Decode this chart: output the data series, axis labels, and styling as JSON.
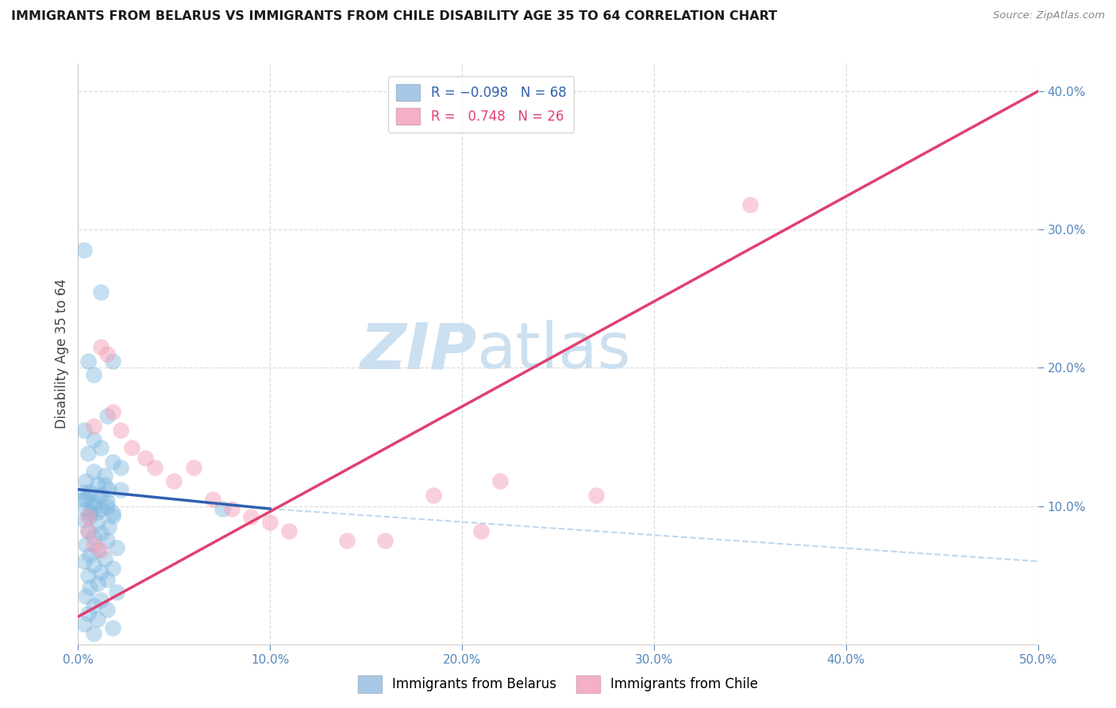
{
  "title": "IMMIGRANTS FROM BELARUS VS IMMIGRANTS FROM CHILE DISABILITY AGE 35 TO 64 CORRELATION CHART",
  "source": "Source: ZipAtlas.com",
  "ylabel": "Disability Age 35 to 64",
  "xlim": [
    0.0,
    0.5
  ],
  "ylim": [
    0.0,
    0.42
  ],
  "xtick_vals": [
    0.0,
    0.1,
    0.2,
    0.3,
    0.4,
    0.5
  ],
  "ytick_vals": [
    0.1,
    0.2,
    0.3,
    0.4
  ],
  "belarus_color": "#7fb8e0",
  "belarus_edge": "#5a9fd4",
  "chile_color": "#f4a0b8",
  "chile_edge": "#e07090",
  "belarus_line_color": "#3060b0",
  "chile_line_color": "#e04070",
  "dash_line_color": "#b0cce8",
  "watermark_color": "#cce0f0",
  "belarus_scatter": [
    [
      0.003,
      0.285
    ],
    [
      0.012,
      0.255
    ],
    [
      0.005,
      0.205
    ],
    [
      0.008,
      0.195
    ],
    [
      0.015,
      0.165
    ],
    [
      0.018,
      0.205
    ],
    [
      0.003,
      0.155
    ],
    [
      0.008,
      0.148
    ],
    [
      0.012,
      0.142
    ],
    [
      0.005,
      0.138
    ],
    [
      0.018,
      0.132
    ],
    [
      0.022,
      0.128
    ],
    [
      0.008,
      0.125
    ],
    [
      0.014,
      0.122
    ],
    [
      0.004,
      0.118
    ],
    [
      0.01,
      0.116
    ],
    [
      0.016,
      0.112
    ],
    [
      0.006,
      0.11
    ],
    [
      0.012,
      0.108
    ],
    [
      0.003,
      0.105
    ],
    [
      0.008,
      0.102
    ],
    [
      0.015,
      0.1
    ],
    [
      0.004,
      0.098
    ],
    [
      0.01,
      0.096
    ],
    [
      0.018,
      0.095
    ],
    [
      0.006,
      0.093
    ],
    [
      0.014,
      0.115
    ],
    [
      0.022,
      0.112
    ],
    [
      0.003,
      0.11
    ],
    [
      0.01,
      0.108
    ],
    [
      0.004,
      0.105
    ],
    [
      0.015,
      0.103
    ],
    [
      0.008,
      0.1
    ],
    [
      0.012,
      0.098
    ],
    [
      0.006,
      0.095
    ],
    [
      0.018,
      0.093
    ],
    [
      0.003,
      0.09
    ],
    [
      0.01,
      0.088
    ],
    [
      0.016,
      0.085
    ],
    [
      0.005,
      0.082
    ],
    [
      0.012,
      0.08
    ],
    [
      0.008,
      0.078
    ],
    [
      0.015,
      0.075
    ],
    [
      0.004,
      0.072
    ],
    [
      0.02,
      0.07
    ],
    [
      0.01,
      0.068
    ],
    [
      0.006,
      0.065
    ],
    [
      0.014,
      0.062
    ],
    [
      0.003,
      0.06
    ],
    [
      0.008,
      0.057
    ],
    [
      0.018,
      0.055
    ],
    [
      0.012,
      0.052
    ],
    [
      0.005,
      0.05
    ],
    [
      0.015,
      0.047
    ],
    [
      0.01,
      0.044
    ],
    [
      0.006,
      0.041
    ],
    [
      0.02,
      0.038
    ],
    [
      0.004,
      0.035
    ],
    [
      0.012,
      0.032
    ],
    [
      0.008,
      0.028
    ],
    [
      0.015,
      0.025
    ],
    [
      0.005,
      0.022
    ],
    [
      0.01,
      0.018
    ],
    [
      0.003,
      0.015
    ],
    [
      0.018,
      0.012
    ],
    [
      0.008,
      0.008
    ],
    [
      0.075,
      0.098
    ]
  ],
  "chile_scatter": [
    [
      0.005,
      0.092
    ],
    [
      0.008,
      0.158
    ],
    [
      0.012,
      0.215
    ],
    [
      0.015,
      0.21
    ],
    [
      0.018,
      0.168
    ],
    [
      0.022,
      0.155
    ],
    [
      0.028,
      0.142
    ],
    [
      0.035,
      0.135
    ],
    [
      0.04,
      0.128
    ],
    [
      0.05,
      0.118
    ],
    [
      0.06,
      0.128
    ],
    [
      0.07,
      0.105
    ],
    [
      0.08,
      0.098
    ],
    [
      0.09,
      0.092
    ],
    [
      0.1,
      0.088
    ],
    [
      0.11,
      0.082
    ],
    [
      0.14,
      0.075
    ],
    [
      0.16,
      0.075
    ],
    [
      0.185,
      0.108
    ],
    [
      0.21,
      0.082
    ],
    [
      0.22,
      0.118
    ],
    [
      0.27,
      0.108
    ],
    [
      0.35,
      0.318
    ],
    [
      0.005,
      0.082
    ],
    [
      0.008,
      0.072
    ],
    [
      0.012,
      0.068
    ]
  ],
  "chile_line_x": [
    0.0,
    0.5
  ],
  "chile_line_y": [
    0.02,
    0.4
  ],
  "belarus_line_x": [
    0.0,
    0.1
  ],
  "belarus_line_y": [
    0.112,
    0.098
  ],
  "dash_line_x": [
    0.1,
    0.5
  ],
  "dash_line_y": [
    0.098,
    0.06
  ]
}
